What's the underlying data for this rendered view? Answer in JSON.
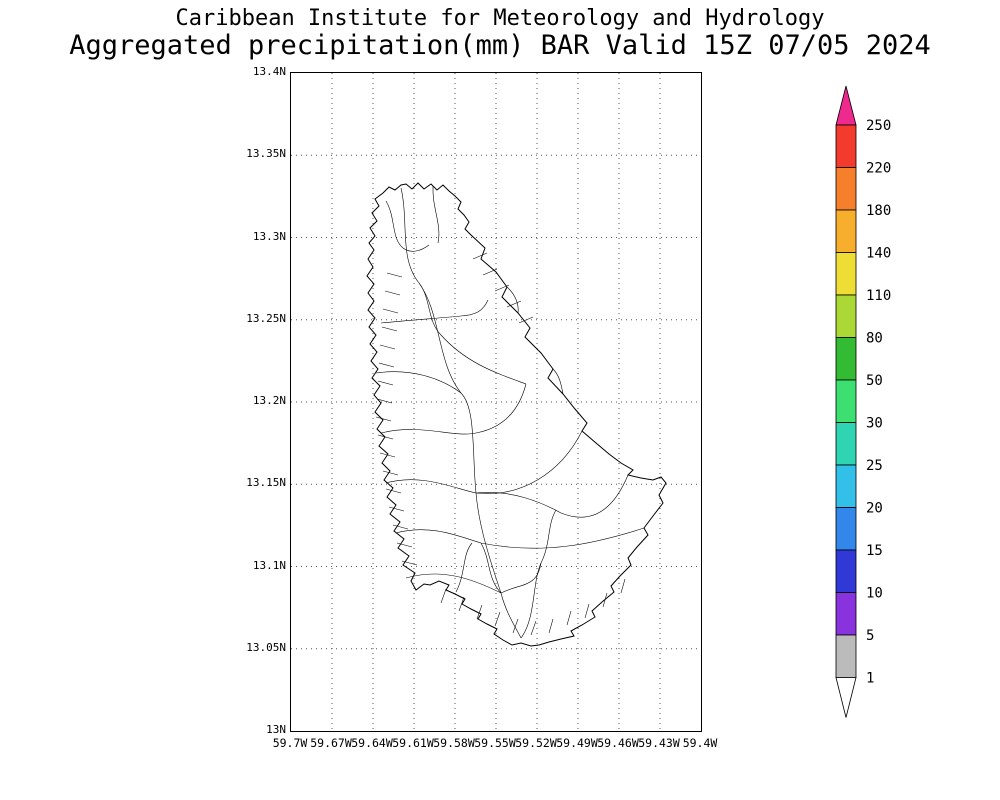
{
  "title": {
    "line1": "Caribbean Institute for Meteorology and Hydrology",
    "line2": "Aggregated precipitation(mm) BAR Valid 15Z 07/05 2024"
  },
  "map": {
    "y_ticks": [
      "13.4N",
      "13.35N",
      "13.3N",
      "13.25N",
      "13.2N",
      "13.15N",
      "13.1N",
      "13.05N",
      "13N"
    ],
    "x_ticks": [
      "59.7W",
      "59.67W",
      "59.64W",
      "59.61W",
      "59.58W",
      "59.55W",
      "59.52W",
      "59.49W",
      "59.46W",
      "59.43W",
      "59.4W"
    ],
    "grid_color": "#555555"
  },
  "colorbar": {
    "labels": [
      "250",
      "220",
      "180",
      "140",
      "110",
      "80",
      "50",
      "30",
      "25",
      "20",
      "15",
      "10",
      "5",
      "1"
    ],
    "segment_colors_top_to_bottom": [
      "#f23b2d",
      "#f57f2a",
      "#f6ae2c",
      "#eedd35",
      "#abd834",
      "#33bb33",
      "#3ddf70",
      "#2fd4b2",
      "#33c0e8",
      "#3386ea",
      "#3038d6",
      "#8833dd",
      "#bbbbbb"
    ],
    "arrow_top_color": "#ee2a8f",
    "arrow_bottom_color": "#ffffff",
    "outline_color": "#000000"
  }
}
